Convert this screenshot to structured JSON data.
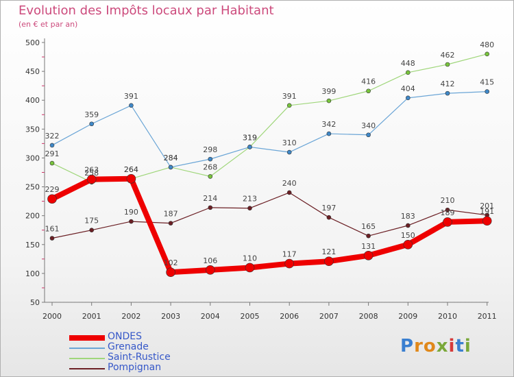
{
  "title": "Evolution des Impôts locaux par Habitant",
  "subtitle": "(en € et par an)",
  "logo": {
    "text": "Proxiti",
    "letters": [
      {
        "ch": "P",
        "color": "#3a7fd0"
      },
      {
        "ch": "r",
        "color": "#e0881a"
      },
      {
        "ch": "o",
        "color": "#e0881a"
      },
      {
        "ch": "x",
        "color": "#7aa83a"
      },
      {
        "ch": "i",
        "color": "#d63a3a"
      },
      {
        "ch": "t",
        "color": "#3a7fd0"
      },
      {
        "ch": "i",
        "color": "#7aa83a"
      }
    ]
  },
  "chart_data": {
    "type": "line",
    "title": "Evolution des Impôts locaux par Habitant",
    "subtitle": "(en € et par an)",
    "x": [
      "2000",
      "2001",
      "2002",
      "2003",
      "2004",
      "2005",
      "2006",
      "2007",
      "2008",
      "2009",
      "2010",
      "2011"
    ],
    "ylim": [
      50,
      500
    ],
    "yticks": [
      50,
      100,
      150,
      200,
      250,
      300,
      350,
      400,
      450,
      500
    ],
    "grid": false,
    "legend_position": "bottom-left",
    "series": [
      {
        "name": "Pompignan",
        "color": "#6b1f24",
        "marker": "#6b1f24",
        "width": 1.2,
        "r": 3,
        "values": [
          161,
          175,
          190,
          187,
          214,
          213,
          240,
          197,
          165,
          183,
          210,
          201
        ]
      },
      {
        "name": "Saint-Rustice",
        "color": "#9fd67a",
        "marker": "#78c43c",
        "width": 1.2,
        "r": 3,
        "values": [
          291,
          258,
          264,
          284,
          268,
          319,
          391,
          399,
          416,
          448,
          462,
          480
        ]
      },
      {
        "name": "Grenade",
        "color": "#6aa5d6",
        "marker": "#3f88c8",
        "width": 1.2,
        "r": 3,
        "values": [
          322,
          359,
          391,
          284,
          298,
          319,
          310,
          342,
          340,
          404,
          412,
          415
        ]
      },
      {
        "name": "ONDES",
        "color": "#ee0000",
        "marker": "#ee0000",
        "width": 8,
        "r": 6.5,
        "values": [
          229,
          263,
          264,
          102,
          106,
          110,
          117,
          121,
          131,
          150,
          189,
          191
        ]
      }
    ],
    "legend_order": [
      "ONDES",
      "Grenade",
      "Saint-Rustice",
      "Pompignan"
    ]
  }
}
